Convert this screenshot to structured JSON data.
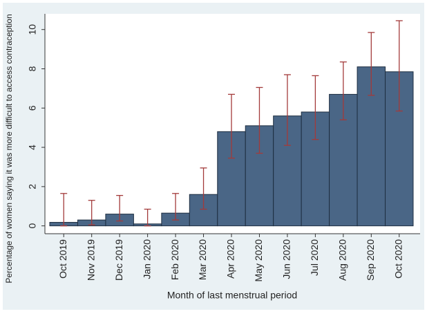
{
  "chart_data": {
    "type": "bar",
    "x_label": "Month of last menstrual period",
    "y_label": "Percentage of women saying it was more difficult to access contraception",
    "categories": [
      "Oct 2019",
      "Nov 2019",
      "Dec 2019",
      "Jan 2020",
      "Feb 2020",
      "Mar 2020",
      "Apr 2020",
      "May 2020",
      "Jun 2020",
      "Jul 2020",
      "Aug 2020",
      "Sep 2020",
      "Oct 2020"
    ],
    "values": [
      0.18,
      0.3,
      0.6,
      0.1,
      0.65,
      1.6,
      4.8,
      5.1,
      5.6,
      5.8,
      6.7,
      8.1,
      7.85
    ],
    "lower": [
      0,
      0.05,
      0.25,
      0,
      0.3,
      0.85,
      3.45,
      3.7,
      4.1,
      4.4,
      5.4,
      6.65,
      5.85
    ],
    "upper": [
      1.65,
      1.3,
      1.55,
      0.85,
      1.65,
      2.95,
      6.7,
      7.05,
      7.7,
      7.65,
      8.35,
      9.85,
      10.45
    ],
    "color": "#4a6686",
    "error_color": "#a33a3a",
    "ylim": [
      -0.4,
      10.8
    ],
    "yticks": [
      0,
      2,
      4,
      6,
      8,
      10
    ]
  }
}
